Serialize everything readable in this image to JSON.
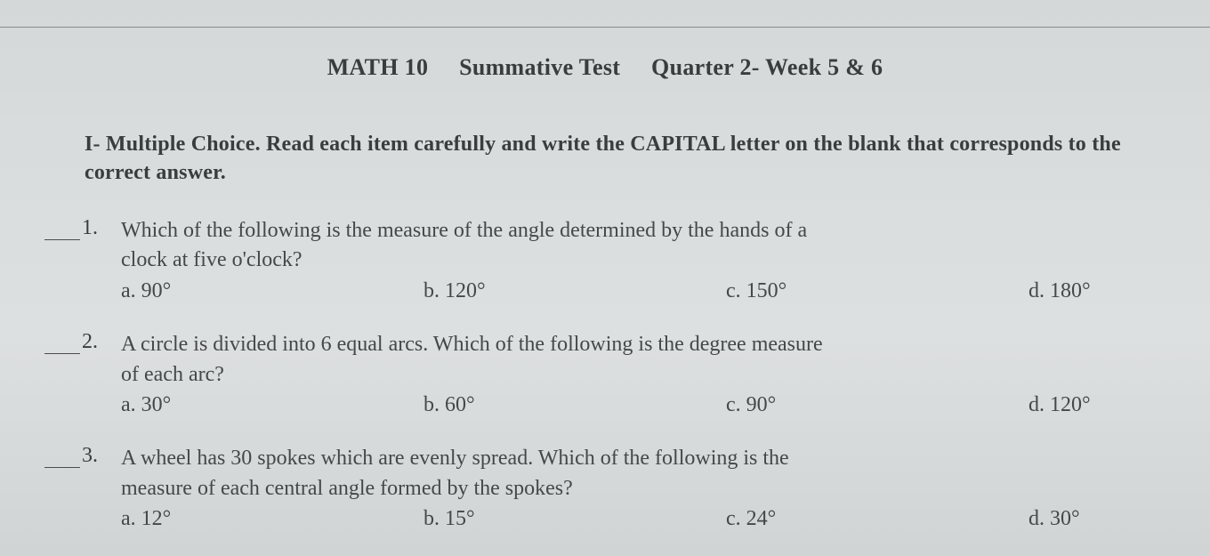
{
  "header": {
    "course": "MATH 10",
    "test": "Summative Test",
    "period": "Quarter 2- Week 5 & 6"
  },
  "instructions": {
    "label": "I- Multiple Choice. Read each item carefully and write the CAPITAL letter on the blank that corresponds to the correct answer."
  },
  "questions": [
    {
      "num": "1.",
      "text_line1": "Which of the following is the measure of the angle determined by the hands of a",
      "text_rest": "clock at five o'clock?",
      "choices": {
        "a": "a. 90°",
        "b": "b. 120°",
        "c": "c. 150°",
        "d": "d. 180°"
      }
    },
    {
      "num": "2.",
      "text_line1": "A circle is divided into 6 equal arcs. Which of the following is the degree measure",
      "text_rest": "of each arc?",
      "choices": {
        "a": "a. 30°",
        "b": "b. 60°",
        "c": "c. 90°",
        "d": "d. 120°"
      }
    },
    {
      "num": "3.",
      "text_line1": "A wheel has 30 spokes which are evenly spread. Which of the following is the",
      "text_rest": "measure of each central angle formed by the spokes?",
      "choices": {
        "a": "a. 12°",
        "b": "b. 15°",
        "c": "c. 24°",
        "d": "d. 30°"
      }
    }
  ]
}
